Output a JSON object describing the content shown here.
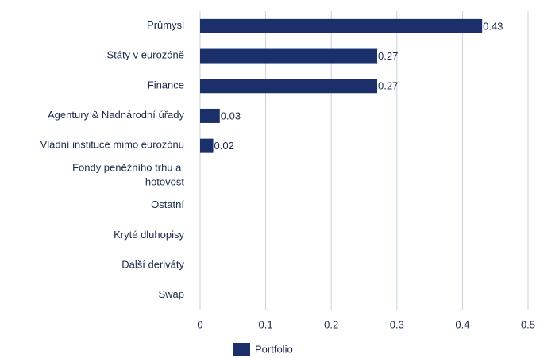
{
  "chart_data": {
    "type": "barh",
    "categories": [
      "Průmysl",
      "Státy v eurozóně",
      "Finance",
      "Agentury & Nadnárodní úřady",
      "Vládní instituce mimo eurozónu",
      "Fondy peněžního trhu a hotovost",
      "Ostatní",
      "Kryté dluhopisy",
      "Další deriváty",
      "Swap"
    ],
    "series": [
      {
        "name": "Portfolio",
        "color": "#1b2f6b",
        "values": [
          0.43,
          0.27,
          0.27,
          0.03,
          0.02,
          null,
          null,
          null,
          null,
          null
        ]
      }
    ],
    "xlim": [
      0,
      0.5
    ],
    "xticks": [
      0,
      0.1,
      0.2,
      0.3,
      0.4,
      0.5
    ],
    "grid": true,
    "legend": "bottom"
  }
}
